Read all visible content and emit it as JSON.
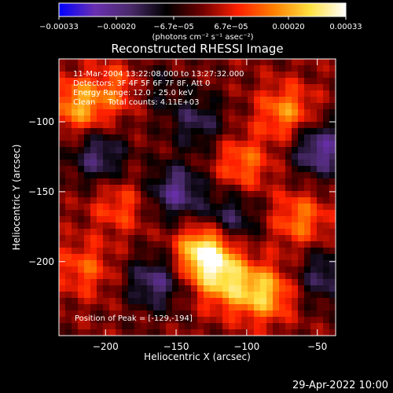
{
  "chart_data": {
    "type": "heatmap",
    "title": "Reconstructed RHESSI Image",
    "xlabel": "Heliocentric X (arcsec)",
    "ylabel": "Heliocentric Y (arcsec)",
    "xlim": [
      -233,
      -37
    ],
    "ylim": [
      -253,
      -55
    ],
    "x_ticks": [
      -200,
      -150,
      -100,
      -50
    ],
    "x_tick_labels": [
      "−200",
      "−150",
      "−100",
      "−50"
    ],
    "y_ticks": [
      -100,
      -150,
      -200
    ],
    "y_tick_labels": [
      "−100",
      "−150",
      "−200"
    ],
    "grid": false,
    "annotations": [
      "11-Mar-2004 13:22:08.000 to 13:27:32.000",
      "Detectors: 3F 4F 5F 6F 7F 8F, Att 0",
      "Energy Range: 12.0 - 25.0 keV",
      "Clean     Total counts: 4.11E+03"
    ],
    "peak_label": "Position of Peak = [-129,-194]",
    "peak": {
      "x": -129,
      "y": -194
    },
    "colorbar": {
      "range": [
        -0.00033,
        0.00033
      ],
      "tick_labels": [
        "−0.00033",
        "−0.00020",
        "−6.7e−05",
        "6.7e−05",
        "0.00020",
        "0.00033"
      ],
      "units_label": "(photons cm⁻² s⁻¹ asec⁻²)",
      "colors": [
        "#0000ff",
        "#6a2fb0",
        "#4a2a6a",
        "#000000",
        "#700000",
        "#ff2000",
        "#ff8000",
        "#ffe040",
        "#ffffff"
      ]
    },
    "bright_regions": [
      {
        "x": -129,
        "y": -194,
        "value": 0.00033
      },
      {
        "x": -88,
        "y": -223,
        "value": 0.00022
      },
      {
        "x": -115,
        "y": -215,
        "value": 0.00018
      },
      {
        "x": -218,
        "y": -88,
        "value": 0.0002
      },
      {
        "x": -185,
        "y": -75,
        "value": 0.00016
      },
      {
        "x": -72,
        "y": -93,
        "value": 0.00017
      },
      {
        "x": -62,
        "y": -170,
        "value": 0.00015
      },
      {
        "x": -103,
        "y": -130,
        "value": 0.00014
      },
      {
        "x": -215,
        "y": -205,
        "value": 0.00012
      },
      {
        "x": -190,
        "y": -160,
        "value": 0.00011
      }
    ],
    "dark_regions": [
      {
        "x": -150,
        "y": -150,
        "value": -0.0002
      },
      {
        "x": -165,
        "y": -215,
        "value": -0.00018
      },
      {
        "x": -205,
        "y": -125,
        "value": -0.00017
      },
      {
        "x": -112,
        "y": -170,
        "value": -0.00016
      },
      {
        "x": -48,
        "y": -120,
        "value": -0.00022
      },
      {
        "x": -45,
        "y": -210,
        "value": -0.00015
      },
      {
        "x": -135,
        "y": -100,
        "value": -0.00014
      },
      {
        "x": -170,
        "y": -75,
        "value": -0.00013
      }
    ]
  },
  "footer": {
    "timestamp": "29-Apr-2022 10:00"
  }
}
